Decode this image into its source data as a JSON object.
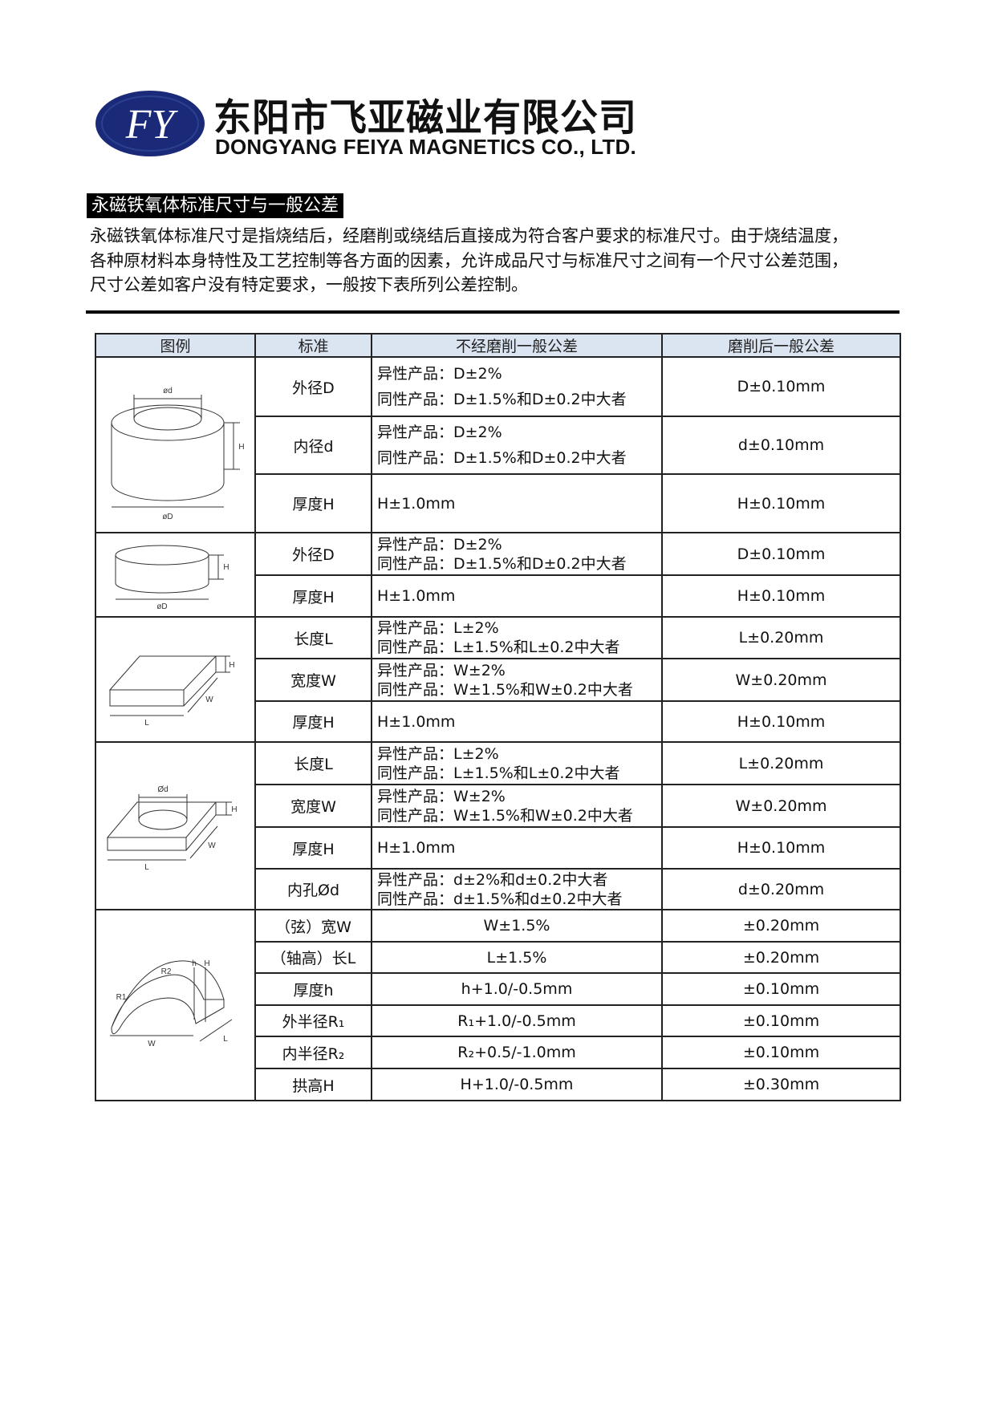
{
  "logo": {
    "letters": "FY",
    "color": "#1a2a78"
  },
  "company": {
    "name_cn": "东阳市飞亚磁业有限公司",
    "name_en": "DONGYANG FEIYA MAGNETICS CO., LTD."
  },
  "section_title": "永磁铁氧体标准尺寸与一般公差",
  "intro_lines": [
    "永磁铁氧体标准尺寸是指烧结后，经磨削或绕结后直接成为符合客户要求的标准尺寸。由于烧结温度，",
    "各种原材料本身特性及工艺控制等各方面的因素，允许成品尺寸与标准尺寸之间有一个尺寸公差范围，",
    "尺寸公差如客户没有特定要求，一般按下表所列公差控制。"
  ],
  "table": {
    "header_color": "#dbe5f1",
    "headers": [
      "图例",
      "标准",
      "不经磨削一般公差",
      "磨削后一般公差"
    ],
    "groups": [
      {
        "figure": "ring",
        "labels": [
          "ød",
          "H",
          "øD"
        ],
        "rows": [
          {
            "std": "外径D",
            "raw": [
              "异性产品：D±2%",
              "同性产品：D±1.5%和D±0.2中大者"
            ],
            "ground": "D±0.10mm"
          },
          {
            "std": "内径d",
            "raw": [
              "异性产品：D±2%",
              "同性产品：D±1.5%和D±0.2中大者"
            ],
            "ground": "d±0.10mm"
          },
          {
            "std": "厚度H",
            "raw": [
              "H±1.0mm"
            ],
            "ground": "H±0.10mm"
          }
        ]
      },
      {
        "figure": "disc",
        "labels": [
          "H",
          "øD"
        ],
        "rows": [
          {
            "std": "外径D",
            "raw": [
              "异性产品：D±2%",
              "同性产品：D±1.5%和D±0.2中大者"
            ],
            "ground": "D±0.10mm"
          },
          {
            "std": "厚度H",
            "raw": [
              "H±1.0mm"
            ],
            "ground": "H±0.10mm"
          }
        ]
      },
      {
        "figure": "block",
        "labels": [
          "H",
          "W",
          "L"
        ],
        "rows": [
          {
            "std": "长度L",
            "raw": [
              "异性产品：L±2%",
              "同性产品：L±1.5%和L±0.2中大者"
            ],
            "ground": "L±0.20mm"
          },
          {
            "std": "宽度W",
            "raw": [
              "异性产品：W±2%",
              "同性产品：W±1.5%和W±0.2中大者"
            ],
            "ground": "W±0.20mm"
          },
          {
            "std": "厚度H",
            "raw": [
              "H±1.0mm"
            ],
            "ground": "H±0.10mm"
          }
        ]
      },
      {
        "figure": "block-hole",
        "labels": [
          "Ød",
          "H",
          "W",
          "L"
        ],
        "rows": [
          {
            "std": "长度L",
            "raw": [
              "异性产品：L±2%",
              "同性产品：L±1.5%和L±0.2中大者"
            ],
            "ground": "L±0.20mm"
          },
          {
            "std": "宽度W",
            "raw": [
              "异性产品：W±2%",
              "同性产品：W±1.5%和W±0.2中大者"
            ],
            "ground": "W±0.20mm"
          },
          {
            "std": "厚度H",
            "raw": [
              "H±1.0mm"
            ],
            "ground": "H±0.10mm"
          },
          {
            "std": "内孔Ød",
            "raw": [
              "异性产品：d±2%和d±0.2中大者",
              "同性产品：d±1.5%和d±0.2中大者"
            ],
            "ground": "d±0.20mm"
          }
        ]
      },
      {
        "figure": "arc",
        "labels": [
          "R1",
          "R2",
          "h",
          "H",
          "W",
          "L"
        ],
        "center": true,
        "rows": [
          {
            "std": "（弦）宽W",
            "raw": [
              "W±1.5%"
            ],
            "ground": "±0.20mm"
          },
          {
            "std": "（轴高）长L",
            "raw": [
              "L±1.5%"
            ],
            "ground": "±0.20mm"
          },
          {
            "std": "厚度h",
            "raw": [
              "h+1.0/-0.5mm"
            ],
            "ground": "±0.10mm"
          },
          {
            "std": "外半径R₁",
            "raw": [
              "R₁+1.0/-0.5mm"
            ],
            "ground": "±0.10mm"
          },
          {
            "std": "内半径R₂",
            "raw": [
              "R₂+0.5/-1.0mm"
            ],
            "ground": "±0.10mm"
          },
          {
            "std": "拱高H",
            "raw": [
              "H+1.0/-0.5mm"
            ],
            "ground": "±0.30mm"
          }
        ]
      }
    ]
  }
}
